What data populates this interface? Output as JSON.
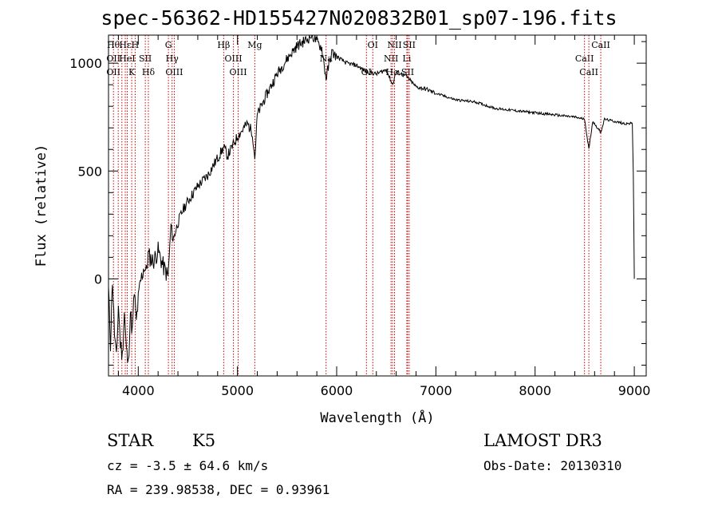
{
  "title": "spec-56362-HD155427N020832B01_sp07-196.fits",
  "footer": {
    "object_class": "STAR",
    "subclass": "K5",
    "survey": "LAMOST DR3",
    "redshift": "cz = -3.5 ± 64.6 km/s",
    "obs_date": "Obs-Date: 20130310",
    "coords": "RA = 239.98538, DEC =    0.93961"
  },
  "chart_data": {
    "type": "line",
    "title": "spec-56362-HD155427N020832B01_sp07-196.fits",
    "xlabel": "Wavelength (Å)",
    "ylabel": "Flux (relative)",
    "xlim": [
      3700,
      9120
    ],
    "ylim": [
      -450,
      1130
    ],
    "xticks": [
      4000,
      5000,
      6000,
      7000,
      8000,
      9000
    ],
    "yticks": [
      0,
      500,
      1000
    ],
    "series": [
      {
        "x": [
          3700,
          3720,
          3740,
          3760,
          3780,
          3800,
          3820,
          3840,
          3860,
          3880,
          3900,
          3920,
          3940,
          3960,
          3980,
          4000,
          4020,
          4040,
          4060,
          4080,
          4100,
          4150,
          4200,
          4250,
          4300,
          4330,
          4350,
          4400,
          4450,
          4500,
          4600,
          4700,
          4800,
          4862,
          4900,
          5000,
          5100,
          5150,
          5175,
          5200,
          5300,
          5400,
          5500,
          5600,
          5700,
          5750,
          5800,
          5850,
          5893,
          5950,
          6000,
          6100,
          6200,
          6300,
          6400,
          6500,
          6563,
          6600,
          6700,
          6800,
          6900,
          7000,
          7200,
          7400,
          7600,
          7800,
          8000,
          8200,
          8400,
          8500,
          8542,
          8580,
          8662,
          8700,
          8800,
          8900,
          8980,
          8990,
          9000
        ],
        "y": [
          -50,
          -300,
          0,
          -250,
          -380,
          -120,
          -300,
          -360,
          -150,
          -330,
          -400,
          -150,
          -250,
          -60,
          -200,
          -100,
          -20,
          20,
          60,
          30,
          110,
          80,
          130,
          60,
          10,
          250,
          180,
          260,
          320,
          360,
          430,
          480,
          560,
          610,
          570,
          660,
          720,
          680,
          560,
          760,
          860,
          950,
          1020,
          1080,
          1110,
          1130,
          1100,
          1070,
          930,
          1050,
          1030,
          1000,
          990,
          960,
          950,
          970,
          900,
          960,
          940,
          890,
          880,
          860,
          830,
          820,
          790,
          780,
          770,
          760,
          750,
          740,
          600,
          730,
          680,
          740,
          730,
          720,
          720,
          500,
          0
        ]
      }
    ],
    "lines": [
      {
        "wl": 3750,
        "labels": [
          "Hθ",
          "OII",
          "OII"
        ]
      },
      {
        "wl": 3798,
        "labels": []
      },
      {
        "wl": 3835,
        "labels": []
      },
      {
        "wl": 3869,
        "labels": [
          "Hε"
        ]
      },
      {
        "wl": 3889,
        "labels": [
          "HeI"
        ]
      },
      {
        "wl": 3934,
        "labels": [
          "K"
        ]
      },
      {
        "wl": 3969,
        "labels": [
          "H"
        ]
      },
      {
        "wl": 4071,
        "labels": [
          "SII"
        ]
      },
      {
        "wl": 4102,
        "labels": [
          "Hδ"
        ]
      },
      {
        "wl": 4304,
        "labels": [
          "G"
        ]
      },
      {
        "wl": 4341,
        "labels": [
          "Hγ"
        ]
      },
      {
        "wl": 4363,
        "labels": [
          "OIII"
        ]
      },
      {
        "wl": 4861,
        "labels": [
          "Hβ"
        ]
      },
      {
        "wl": 4959,
        "labels": [
          "OIII"
        ]
      },
      {
        "wl": 5007,
        "labels": [
          "OIII"
        ]
      },
      {
        "wl": 5175,
        "labels": [
          "Mg"
        ]
      },
      {
        "wl": 5893,
        "labels": [
          "Na"
        ]
      },
      {
        "wl": 6300,
        "labels": [
          "OI"
        ]
      },
      {
        "wl": 6364,
        "labels": [
          "OI"
        ]
      },
      {
        "wl": 6548,
        "labels": [
          "NII"
        ]
      },
      {
        "wl": 6563,
        "labels": [
          "Hα"
        ]
      },
      {
        "wl": 6583,
        "labels": [
          "NII"
        ]
      },
      {
        "wl": 6707,
        "labels": [
          "Li"
        ]
      },
      {
        "wl": 6716,
        "labels": [
          "SII"
        ]
      },
      {
        "wl": 6731,
        "labels": [
          "SII"
        ]
      },
      {
        "wl": 8498,
        "labels": [
          "CaII"
        ]
      },
      {
        "wl": 8542,
        "labels": [
          "CaII"
        ]
      },
      {
        "wl": 8662,
        "labels": [
          "CaII"
        ]
      }
    ],
    "colors": {
      "spectrum": "#000000",
      "line_markers": "#cc0000",
      "axes": "#000000"
    }
  }
}
